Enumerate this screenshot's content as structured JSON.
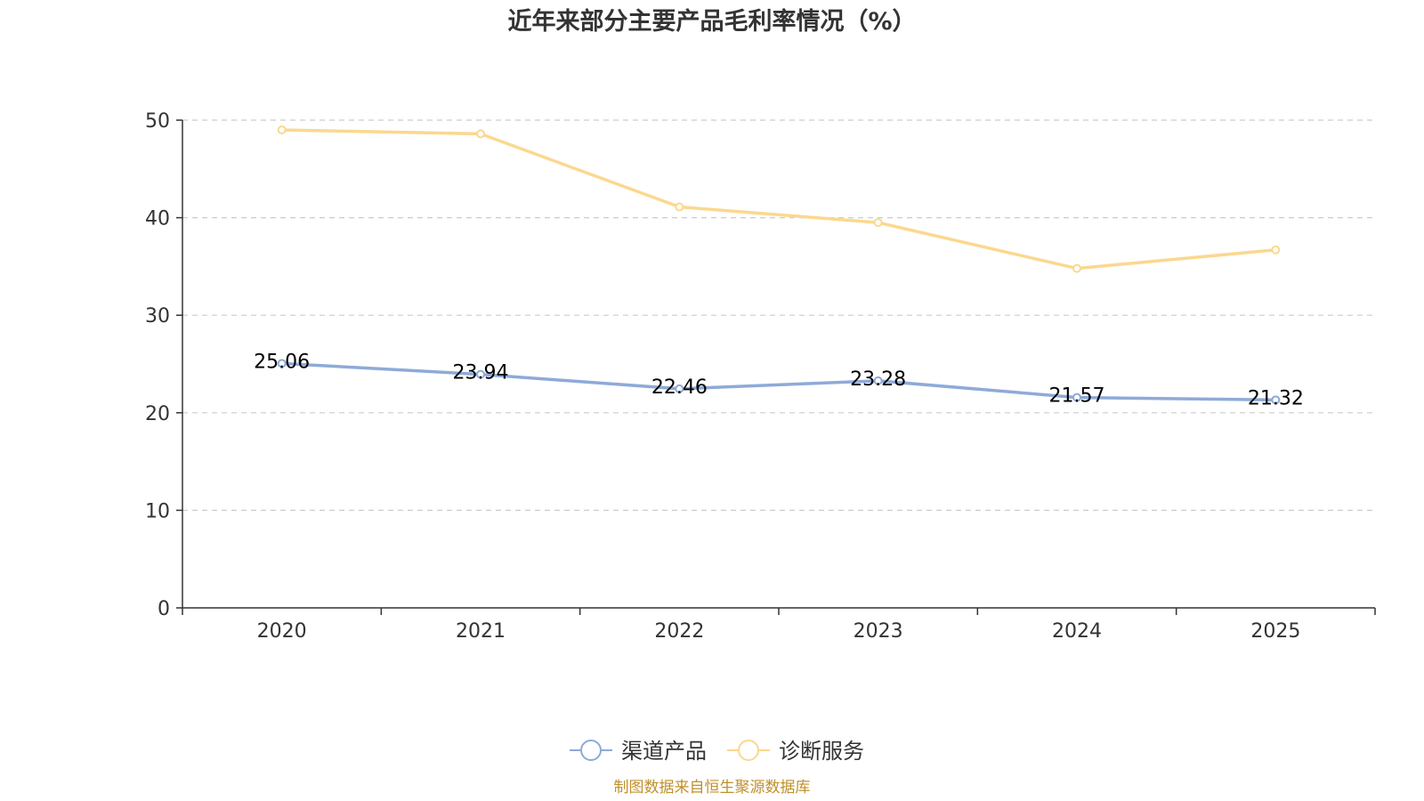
{
  "chart_data": {
    "type": "line",
    "title": "近年来部分主要产品毛利率情况（%）",
    "categories": [
      "2020",
      "2021",
      "2022",
      "2023",
      "2024",
      "2025"
    ],
    "ylim": [
      0,
      50
    ],
    "yticks": [
      0,
      10,
      20,
      30,
      40,
      50
    ],
    "grid": true,
    "legend_position": "bottom-center",
    "series": [
      {
        "name": "渠道产品",
        "color": "#8eaad8",
        "values": [
          25.06,
          23.94,
          22.46,
          23.28,
          21.57,
          21.32
        ],
        "show_labels": true
      },
      {
        "name": "诊断服务",
        "color": "#fbd88f",
        "values": [
          49.0,
          48.6,
          41.1,
          39.5,
          34.8,
          36.7
        ],
        "show_labels": false
      }
    ]
  },
  "source_text": "制图数据来自恒生聚源数据库"
}
